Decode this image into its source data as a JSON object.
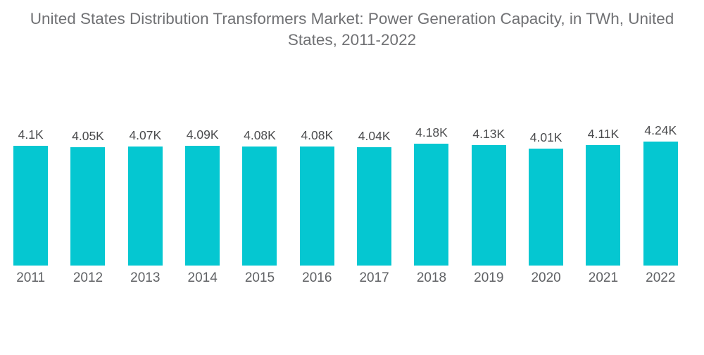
{
  "title": "United States Distribution Transformers Market: Power Generation Capacity, in TWh, United States, 2011-2022",
  "colors": {
    "background": "#FFFFFF",
    "bar": "#05C7D1",
    "title_text": "#707174",
    "value_label_text": "#4A4B4D",
    "year_label_text": "#606265"
  },
  "chart_data": {
    "type": "bar",
    "title": "United States Distribution Transformers Market: Power Generation Capacity, in TWh, United States, 2011-2022",
    "unit": "TWh",
    "categories": [
      "2011",
      "2012",
      "2013",
      "2014",
      "2015",
      "2016",
      "2017",
      "2018",
      "2019",
      "2020",
      "2021",
      "2022"
    ],
    "values": [
      4100,
      4050,
      4070,
      4090,
      4080,
      4080,
      4040,
      4180,
      4130,
      4010,
      4110,
      4240
    ],
    "value_labels": [
      "4.1K",
      "4.05K",
      "4.07K",
      "4.09K",
      "4.08K",
      "4.08K",
      "4.04K",
      "4.18K",
      "4.13K",
      "4.01K",
      "4.11K",
      "4.24K"
    ],
    "xlabel": "",
    "ylabel": "",
    "ylim": [
      0,
      4240
    ],
    "grid": false,
    "legend": "none",
    "bar_color": "#05C7D1",
    "bars_scaled_from_zero": true
  }
}
